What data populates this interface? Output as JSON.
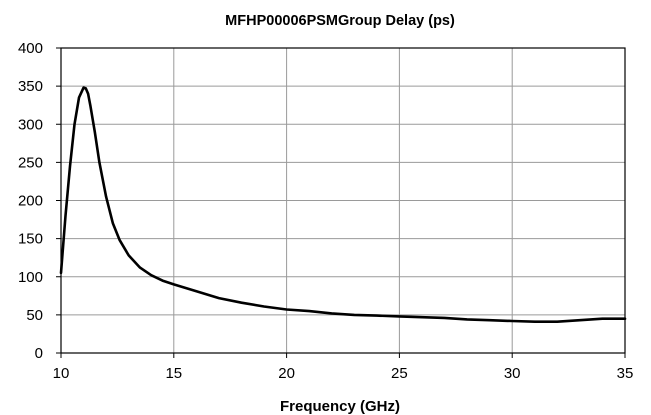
{
  "chart_data": {
    "type": "line",
    "title": "MFHP00006PSMGroup Delay (ps)",
    "xlabel": "Frequency (GHz)",
    "ylabel": "",
    "xlim": [
      10,
      35
    ],
    "ylim": [
      0,
      400
    ],
    "x_ticks": [
      10,
      15,
      20,
      25,
      30,
      35
    ],
    "y_ticks": [
      0,
      50,
      100,
      150,
      200,
      250,
      300,
      350,
      400
    ],
    "grid": true,
    "legend": "none",
    "series": [
      {
        "color": "#000000",
        "x": [
          10.0,
          10.2,
          10.4,
          10.6,
          10.8,
          11.0,
          11.1,
          11.2,
          11.3,
          11.5,
          11.7,
          12.0,
          12.3,
          12.6,
          13.0,
          13.5,
          14.0,
          14.5,
          15.0,
          16.0,
          17.0,
          18.0,
          19.0,
          20.0,
          21.0,
          22.0,
          23.0,
          24.0,
          25.0,
          26.0,
          27.0,
          28.0,
          29.0,
          30.0,
          31.0,
          32.0,
          33.0,
          34.0,
          35.0
        ],
        "y": [
          105,
          180,
          245,
          300,
          335,
          348,
          347,
          340,
          325,
          290,
          250,
          205,
          170,
          148,
          128,
          112,
          102,
          95,
          90,
          81,
          72,
          66,
          61,
          57,
          55,
          52,
          50,
          49,
          48,
          47,
          46,
          44,
          43,
          42,
          41,
          41,
          43,
          45,
          45
        ]
      }
    ]
  }
}
